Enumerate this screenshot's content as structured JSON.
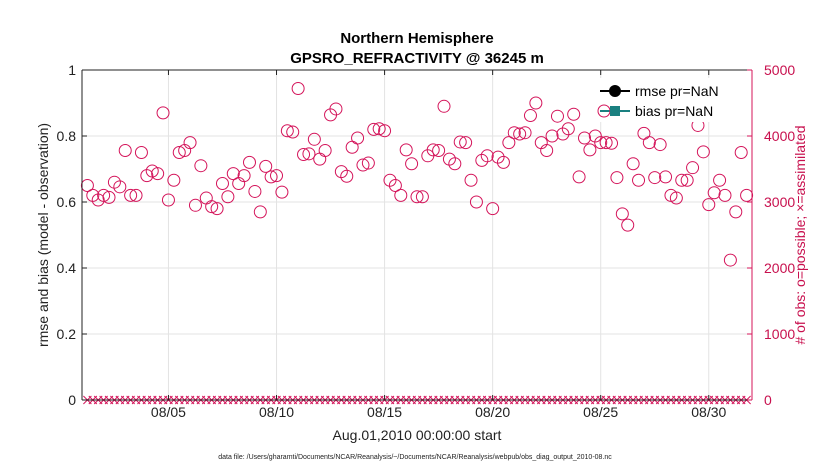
{
  "chart_data": {
    "type": "scatter",
    "title": "Northern Hemisphere",
    "subtitle": "GPSRO_REFRACTIVITY @ 36245 m",
    "xlabel": "Aug.01,2010 00:00:00 start",
    "ylabel": "rmse and bias (model - observation)",
    "y2label": "# of obs: o=possible; ×=assimilated",
    "xlim": [
      1,
      32
    ],
    "ylim": [
      0,
      1
    ],
    "y2lim": [
      0,
      5000
    ],
    "xticks": [
      5,
      10,
      15,
      20,
      25,
      30
    ],
    "xtick_labels": [
      "08/05",
      "08/10",
      "08/15",
      "08/20",
      "08/25",
      "08/30"
    ],
    "yticks": [
      0,
      0.2,
      0.4,
      0.6,
      0.8,
      1
    ],
    "ytick_labels": [
      "0",
      "0.2",
      "0.4",
      "0.6",
      "0.8",
      "1"
    ],
    "y2ticks": [
      0,
      1000,
      2000,
      3000,
      4000,
      5000
    ],
    "y2tick_labels": [
      "0",
      "1000",
      "2000",
      "3000",
      "4000",
      "5000"
    ],
    "grid": true,
    "legend": {
      "placement": "top-right",
      "entries": [
        "rmse pr=NaN",
        "bias pr=NaN"
      ]
    },
    "series": [
      {
        "name": "rmse pr=NaN",
        "values": []
      },
      {
        "name": "bias pr=NaN",
        "values": []
      },
      {
        "name": "possible observations",
        "marker": "circle",
        "x": [
          1.25,
          1.5,
          1.75,
          2.0,
          2.25,
          2.5,
          2.75,
          3.0,
          3.25,
          3.5,
          3.75,
          4.0,
          4.25,
          4.5,
          4.75,
          5.0,
          5.25,
          5.5,
          5.75,
          6.0,
          6.25,
          6.5,
          6.75,
          7.0,
          7.25,
          7.5,
          7.75,
          8.0,
          8.25,
          8.5,
          8.75,
          9.0,
          9.25,
          9.5,
          9.75,
          10.0,
          10.25,
          10.5,
          10.75,
          11.0,
          11.25,
          11.5,
          11.75,
          12.0,
          12.25,
          12.5,
          12.75,
          13.0,
          13.25,
          13.5,
          13.75,
          14.0,
          14.25,
          14.5,
          14.75,
          15.0,
          15.25,
          15.5,
          15.75,
          16.0,
          16.25,
          16.5,
          16.75,
          17.0,
          17.25,
          17.5,
          17.75,
          18.0,
          18.25,
          18.5,
          18.75,
          19.0,
          19.25,
          19.5,
          19.75,
          20.0,
          20.25,
          20.5,
          20.75,
          21.0,
          21.25,
          21.5,
          21.75,
          22.0,
          22.25,
          22.5,
          22.75,
          23.0,
          23.25,
          23.5,
          23.75,
          24.0,
          24.25,
          24.5,
          24.75,
          25.0,
          25.25,
          25.5,
          25.75,
          26.0,
          26.25,
          26.5,
          26.75,
          27.0,
          27.25,
          27.5,
          27.75,
          28.0,
          28.25,
          28.5,
          28.75,
          29.0,
          29.25,
          29.5,
          29.75,
          30.0,
          30.25,
          30.5,
          30.75,
          31.0,
          31.25,
          31.5,
          31.75
        ],
        "values": [
          3250,
          3100,
          3030,
          3100,
          3070,
          3300,
          3230,
          3780,
          3100,
          3100,
          3750,
          3400,
          3470,
          3430,
          4350,
          3030,
          3330,
          3750,
          3780,
          3900,
          2950,
          3550,
          3060,
          2930,
          2900,
          3280,
          3080,
          3430,
          3280,
          3400,
          3600,
          3160,
          2850,
          3540,
          3380,
          3400,
          3150,
          4080,
          4060,
          4720,
          3720,
          3730,
          3950,
          3650,
          3780,
          4320,
          4410,
          3460,
          3390,
          3830,
          3970,
          3560,
          3590,
          4100,
          4110,
          4080,
          3330,
          3250,
          3100,
          3790,
          3580,
          3080,
          3080,
          3700,
          3790,
          3780,
          4450,
          3650,
          3580,
          3910,
          3900,
          3330,
          3000,
          3630,
          3700,
          2900,
          3680,
          3600,
          3900,
          4050,
          4030,
          4050,
          4310,
          4500,
          3900,
          3780,
          4000,
          4300,
          4030,
          4110,
          4330,
          3380,
          3970,
          3790,
          4000,
          3900,
          3900,
          3890,
          3370,
          2820,
          2650,
          3580,
          3330,
          4040,
          3900,
          3370,
          3870,
          3380,
          3100,
          3060,
          3330,
          3330,
          3520,
          4160,
          3760,
          2960,
          3140,
          3330,
          3100,
          2120,
          2850,
          3750,
          3100
        ]
      },
      {
        "name": "assimilated observations",
        "marker": "x",
        "x": [
          1.25,
          1.5,
          1.75,
          2.0,
          2.25,
          2.5,
          2.75,
          3.0,
          3.25,
          3.5,
          3.75,
          4.0,
          4.25,
          4.5,
          4.75,
          5.0,
          5.25,
          5.5,
          5.75,
          6.0,
          6.25,
          6.5,
          6.75,
          7.0,
          7.25,
          7.5,
          7.75,
          8.0,
          8.25,
          8.5,
          8.75,
          9.0,
          9.25,
          9.5,
          9.75,
          10.0,
          10.25,
          10.5,
          10.75,
          11.0,
          11.25,
          11.5,
          11.75,
          12.0,
          12.25,
          12.5,
          12.75,
          13.0,
          13.25,
          13.5,
          13.75,
          14.0,
          14.25,
          14.5,
          14.75,
          15.0,
          15.25,
          15.5,
          15.75,
          16.0,
          16.25,
          16.5,
          16.75,
          17.0,
          17.25,
          17.5,
          17.75,
          18.0,
          18.25,
          18.5,
          18.75,
          19.0,
          19.25,
          19.5,
          19.75,
          20.0,
          20.25,
          20.5,
          20.75,
          21.0,
          21.25,
          21.5,
          21.75,
          22.0,
          22.25,
          22.5,
          22.75,
          23.0,
          23.25,
          23.5,
          23.75,
          24.0,
          24.25,
          24.5,
          24.75,
          25.0,
          25.25,
          25.5,
          25.75,
          26.0,
          26.25,
          26.5,
          26.75,
          27.0,
          27.25,
          27.5,
          27.75,
          28.0,
          28.25,
          28.5,
          28.75,
          29.0,
          29.25,
          29.5,
          29.75,
          30.0,
          30.25,
          30.5,
          30.75,
          31.0,
          31.25,
          31.5,
          31.75
        ],
        "values": [
          0,
          0,
          0,
          0,
          0,
          0,
          0,
          0,
          0,
          0,
          0,
          0,
          0,
          0,
          0,
          0,
          0,
          0,
          0,
          0,
          0,
          0,
          0,
          0,
          0,
          0,
          0,
          0,
          0,
          0,
          0,
          0,
          0,
          0,
          0,
          0,
          0,
          0,
          0,
          0,
          0,
          0,
          0,
          0,
          0,
          0,
          0,
          0,
          0,
          0,
          0,
          0,
          0,
          0,
          0,
          0,
          0,
          0,
          0,
          0,
          0,
          0,
          0,
          0,
          0,
          0,
          0,
          0,
          0,
          0,
          0,
          0,
          0,
          0,
          0,
          0,
          0,
          0,
          0,
          0,
          0,
          0,
          0,
          0,
          0,
          0,
          0,
          0,
          0,
          0,
          0,
          0,
          0,
          0,
          0,
          0,
          0,
          0,
          0,
          0,
          0,
          0,
          0,
          0,
          0,
          0,
          0,
          0,
          0,
          0,
          0,
          0,
          0,
          0,
          0,
          0,
          0,
          0,
          0,
          0,
          0,
          0,
          0
        ]
      }
    ],
    "footnote": "data file: /Users/gharamti/Documents/NCAR/Reanalysis/~/Documents/NCAR/Reanalysis/webpub/obs_diag_output_2010-08.nc"
  },
  "colors": {
    "obs": "#d4145a",
    "rmse": "#000000",
    "bias": "#1a8080",
    "grid": "#e3e3e3",
    "axis": "#222222"
  }
}
